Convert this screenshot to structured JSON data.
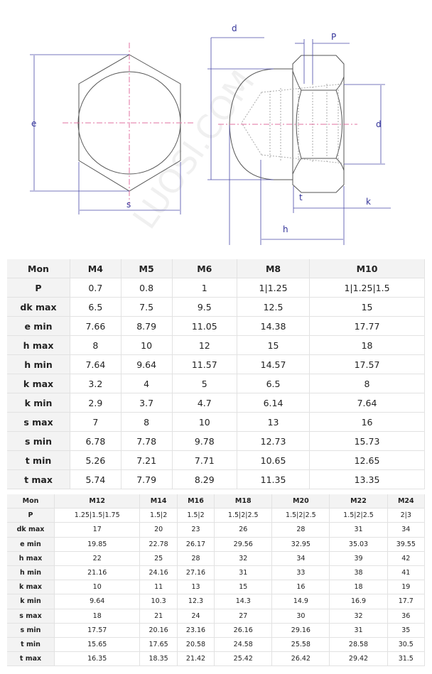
{
  "drawing": {
    "labels": {
      "e": "e",
      "s": "s",
      "d_top": "d",
      "P": "P",
      "d_right": "d",
      "k": "k",
      "t": "t",
      "h": "h"
    },
    "watermark": "LUOSI.COM",
    "colors": {
      "dimension": "#4a4aa8",
      "centerline": "#e070a0",
      "outline": "#555555"
    }
  },
  "table1": {
    "headers": [
      "Mon",
      "M4",
      "M5",
      "M6",
      "M8",
      "M10"
    ],
    "rows": [
      [
        "P",
        "0.7",
        "0.8",
        "1",
        "1|1.25",
        "1|1.25|1.5"
      ],
      [
        "dk max",
        "6.5",
        "7.5",
        "9.5",
        "12.5",
        "15"
      ],
      [
        "e min",
        "7.66",
        "8.79",
        "11.05",
        "14.38",
        "17.77"
      ],
      [
        "h max",
        "8",
        "10",
        "12",
        "15",
        "18"
      ],
      [
        "h min",
        "7.64",
        "9.64",
        "11.57",
        "14.57",
        "17.57"
      ],
      [
        "k max",
        "3.2",
        "4",
        "5",
        "6.5",
        "8"
      ],
      [
        "k min",
        "2.9",
        "3.7",
        "4.7",
        "6.14",
        "7.64"
      ],
      [
        "s max",
        "7",
        "8",
        "10",
        "13",
        "16"
      ],
      [
        "s min",
        "6.78",
        "7.78",
        "9.78",
        "12.73",
        "15.73"
      ],
      [
        "t min",
        "5.26",
        "7.21",
        "7.71",
        "10.65",
        "12.65"
      ],
      [
        "t max",
        "5.74",
        "7.79",
        "8.29",
        "11.35",
        "13.35"
      ]
    ]
  },
  "table2": {
    "headers": [
      "Mon",
      "M12",
      "M14",
      "M16",
      "M18",
      "M20",
      "M22",
      "M24"
    ],
    "rows": [
      [
        "P",
        "1.25|1.5|1.75",
        "1.5|2",
        "1.5|2",
        "1.5|2|2.5",
        "1.5|2|2.5",
        "1.5|2|2.5",
        "2|3"
      ],
      [
        "dk max",
        "17",
        "20",
        "23",
        "26",
        "28",
        "31",
        "34"
      ],
      [
        "e min",
        "19.85",
        "22.78",
        "26.17",
        "29.56",
        "32.95",
        "35.03",
        "39.55"
      ],
      [
        "h max",
        "22",
        "25",
        "28",
        "32",
        "34",
        "39",
        "42"
      ],
      [
        "h min",
        "21.16",
        "24.16",
        "27.16",
        "31",
        "33",
        "38",
        "41"
      ],
      [
        "k max",
        "10",
        "11",
        "13",
        "15",
        "16",
        "18",
        "19"
      ],
      [
        "k min",
        "9.64",
        "10.3",
        "12.3",
        "14.3",
        "14.9",
        "16.9",
        "17.7"
      ],
      [
        "s max",
        "18",
        "21",
        "24",
        "27",
        "30",
        "32",
        "36"
      ],
      [
        "s min",
        "17.57",
        "20.16",
        "23.16",
        "26.16",
        "29.16",
        "31",
        "35"
      ],
      [
        "t min",
        "15.65",
        "17.65",
        "20.58",
        "24.58",
        "25.58",
        "28.58",
        "30.5"
      ],
      [
        "t max",
        "16.35",
        "18.35",
        "21.42",
        "25.42",
        "26.42",
        "29.42",
        "31.5"
      ]
    ]
  }
}
